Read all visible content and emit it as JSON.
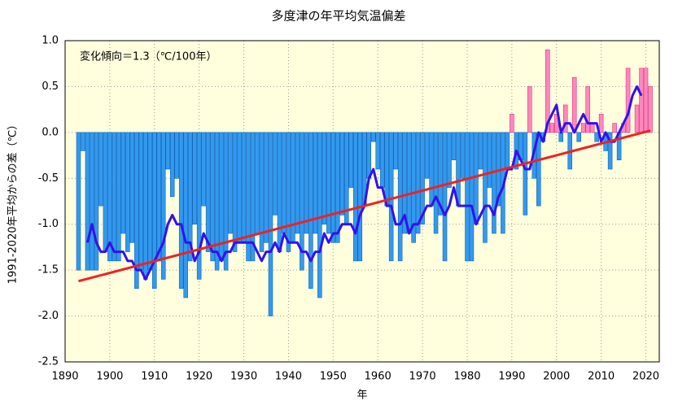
{
  "chart_data": {
    "type": "bar",
    "title": "多度津の年平均気温偏差",
    "xlabel": "年",
    "ylabel": "1991-2020年平均からの差（℃）",
    "annotation": "変化傾向＝1.3（℃/100年）",
    "x": [
      1893,
      1894,
      1895,
      1896,
      1897,
      1898,
      1899,
      1900,
      1901,
      1902,
      1903,
      1904,
      1905,
      1906,
      1907,
      1908,
      1909,
      1910,
      1911,
      1912,
      1913,
      1914,
      1915,
      1916,
      1917,
      1918,
      1919,
      1920,
      1921,
      1922,
      1923,
      1924,
      1925,
      1926,
      1927,
      1928,
      1929,
      1930,
      1931,
      1932,
      1933,
      1934,
      1935,
      1936,
      1937,
      1938,
      1939,
      1940,
      1941,
      1942,
      1943,
      1944,
      1945,
      1946,
      1947,
      1948,
      1949,
      1950,
      1951,
      1952,
      1953,
      1954,
      1955,
      1956,
      1957,
      1958,
      1959,
      1960,
      1961,
      1962,
      1963,
      1964,
      1965,
      1966,
      1967,
      1968,
      1969,
      1970,
      1971,
      1972,
      1973,
      1974,
      1975,
      1976,
      1977,
      1978,
      1979,
      1980,
      1981,
      1982,
      1983,
      1984,
      1985,
      1986,
      1987,
      1988,
      1989,
      1990,
      1991,
      1992,
      1993,
      1994,
      1995,
      1996,
      1997,
      1998,
      1999,
      2000,
      2001,
      2002,
      2003,
      2004,
      2005,
      2006,
      2007,
      2008,
      2009,
      2010,
      2011,
      2012,
      2013,
      2014,
      2015,
      2016,
      2017,
      2018,
      2019,
      2020,
      2021
    ],
    "values": [
      -1.5,
      -0.2,
      -1.5,
      -1.5,
      -1.5,
      -0.8,
      -1.3,
      -1.4,
      -1.4,
      -1.4,
      -1.1,
      -1.3,
      -1.2,
      -1.7,
      -1.5,
      -1.6,
      -1.5,
      -1.7,
      -1.4,
      -1.6,
      -0.4,
      -0.7,
      -0.5,
      -1.7,
      -1.8,
      -1.4,
      -1.0,
      -1.6,
      -0.8,
      -1.3,
      -1.4,
      -1.5,
      -1.4,
      -1.5,
      -1.1,
      -1.3,
      -1.2,
      -1.2,
      -1.4,
      -1.4,
      -1.1,
      -1.3,
      -1.2,
      -2.0,
      -0.9,
      -1.3,
      -1.1,
      -1.3,
      -1.2,
      -1.1,
      -1.5,
      -1.1,
      -1.7,
      -1.1,
      -1.8,
      -1.0,
      -1.1,
      -1.2,
      -1.2,
      -0.9,
      -1.0,
      -0.6,
      -1.4,
      -1.4,
      -0.8,
      -0.5,
      -0.1,
      -0.4,
      -0.6,
      -0.8,
      -1.4,
      -0.4,
      -1.4,
      -1.1,
      -1.1,
      -1.2,
      -1.1,
      -1.0,
      -0.5,
      -0.8,
      -1.1,
      -0.9,
      -1.4,
      -0.6,
      -0.3,
      -0.8,
      -0.5,
      -1.4,
      -1.4,
      -1.0,
      -0.4,
      -1.2,
      -0.6,
      -1.1,
      -0.8,
      -1.1,
      -0.4,
      0.2,
      -0.4,
      -0.3,
      -0.9,
      0.5,
      -0.5,
      -0.8,
      -0.1,
      0.9,
      0.1,
      0.2,
      -0.1,
      0.3,
      -0.4,
      0.6,
      -0.1,
      0.1,
      0.5,
      0.1,
      -0.1,
      0.2,
      -0.2,
      -0.4,
      0.1,
      -0.3,
      0.1,
      0.7,
      0.0,
      0.3,
      0.7,
      0.7,
      0.5
    ],
    "positive_color": "#ff88bb",
    "negative_color": "#3399ee",
    "running_mean": {
      "color": "#3311ee",
      "values": [
        null,
        null,
        -1.2,
        -1.0,
        -1.2,
        -1.3,
        -1.3,
        -1.2,
        -1.3,
        -1.3,
        -1.3,
        -1.4,
        -1.4,
        -1.5,
        -1.5,
        -1.6,
        -1.5,
        -1.4,
        -1.3,
        -1.2,
        -1.0,
        -0.9,
        -1.0,
        -1.0,
        -1.2,
        -1.2,
        -1.4,
        -1.3,
        -1.1,
        -1.2,
        -1.3,
        -1.3,
        -1.4,
        -1.3,
        -1.3,
        -1.2,
        -1.2,
        -1.2,
        -1.2,
        -1.2,
        -1.3,
        -1.4,
        -1.3,
        -1.3,
        -1.2,
        -1.3,
        -1.1,
        -1.2,
        -1.2,
        -1.2,
        -1.3,
        -1.3,
        -1.4,
        -1.3,
        -1.3,
        -1.1,
        -1.2,
        -1.1,
        -1.1,
        -1.0,
        -1.0,
        -1.0,
        -1.1,
        -0.9,
        -0.8,
        -0.5,
        -0.4,
        -0.6,
        -0.6,
        -0.8,
        -0.8,
        -1.0,
        -1.0,
        -0.9,
        -1.1,
        -1.0,
        -1.0,
        -0.9,
        -0.8,
        -0.8,
        -0.7,
        -0.8,
        -0.9,
        -0.8,
        -0.6,
        -0.8,
        -0.8,
        -0.8,
        -0.8,
        -1.0,
        -0.9,
        -0.8,
        -0.8,
        -0.9,
        -0.7,
        -0.6,
        -0.4,
        -0.4,
        -0.2,
        -0.3,
        -0.4,
        -0.4,
        -0.2,
        0.0,
        -0.1,
        0.1,
        0.2,
        0.3,
        0.0,
        0.1,
        0.1,
        0.0,
        0.1,
        0.2,
        0.1,
        0.1,
        0.1,
        -0.1,
        0.0,
        -0.1,
        -0.1,
        0.0,
        0.1,
        0.2,
        0.4,
        0.5,
        0.4,
        null,
        null
      ]
    },
    "trend": {
      "color": "#ee2222",
      "x": [
        1893,
        2021
      ],
      "values": [
        -1.62,
        0.02
      ]
    },
    "xlim": [
      1890,
      2023
    ],
    "xticks": [
      1890,
      1900,
      1910,
      1920,
      1930,
      1940,
      1950,
      1960,
      1970,
      1980,
      1990,
      2000,
      2010,
      2020
    ],
    "ylim": [
      -2.5,
      1.0
    ],
    "yticks": [
      {
        "value": 1.0,
        "label": "1.0"
      },
      0.5,
      {
        "value": 0.0,
        "label": "0.0"
      },
      -0.5,
      {
        "value": -1.0,
        "label": "-1.0"
      },
      -1.5,
      {
        "value": -2.0,
        "label": "-2.0"
      },
      -2.5
    ],
    "grid": true,
    "background": "#ffffdd"
  }
}
